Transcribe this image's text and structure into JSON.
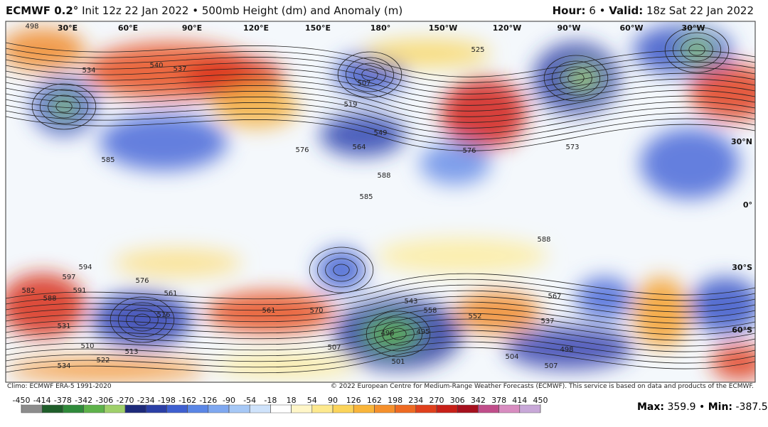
{
  "header": {
    "model": "ECMWF 0.2°",
    "description": "Init 12z 22 Jan 2022 • 500mb Height (dm) and Anomaly (m)",
    "hour_label": "Hour:",
    "hour": "6 •",
    "valid_label": "Valid:",
    "valid": "18z Sat 22 Jan 2022"
  },
  "map": {
    "longitude_labels": [
      "30°E",
      "60°E",
      "90°E",
      "120°E",
      "150°E",
      "180°",
      "150°W",
      "120°W",
      "90°W",
      "60°W",
      "30°W"
    ],
    "latitude_labels": [
      "30°N",
      "0°",
      "30°S",
      "60°S"
    ],
    "contour_labels": [
      498,
      507,
      519,
      525,
      534,
      537,
      540,
      564,
      549,
      576,
      585,
      588,
      585,
      576,
      573,
      567,
      561,
      594,
      597,
      588,
      582,
      591,
      576,
      561,
      570,
      543,
      558,
      498,
      495,
      501,
      504,
      498,
      507,
      513,
      522,
      534,
      516,
      531,
      507,
      510,
      552,
      537,
      588
    ]
  },
  "footer": {
    "climo": "Climo: ECMWF ERA-5 1991-2020",
    "copyright": "© 2022 European Centre for Medium-Range Weather Forecasts (ECMWF). This service is based on data and products of the ECMWF."
  },
  "colorbar": {
    "ticks": [
      -450,
      -414,
      -378,
      -342,
      -306,
      -270,
      -234,
      -198,
      -162,
      -126,
      -90,
      -54,
      -18,
      18,
      54,
      90,
      126,
      162,
      198,
      234,
      270,
      306,
      342,
      378,
      414,
      450
    ],
    "colors": [
      "#8c8c8c",
      "#1f5e2a",
      "#2f8a3a",
      "#5eb24a",
      "#9fd06a",
      "#1d2a7a",
      "#2b3fa6",
      "#3e5fd0",
      "#5a86e6",
      "#7fa8f0",
      "#a6c8f6",
      "#cfe3fb",
      "#ffffff",
      "#fff6c8",
      "#fde98e",
      "#fbd45a",
      "#f9b53a",
      "#f5902c",
      "#ee6a22",
      "#e0401c",
      "#c82018",
      "#a6101e",
      "#c04d8a",
      "#d88cc0",
      "#c8a8d8"
    ]
  },
  "stats": {
    "max_label": "Max:",
    "max": 359.9,
    "sep": "•",
    "min_label": "Min:",
    "min": -387.5
  }
}
